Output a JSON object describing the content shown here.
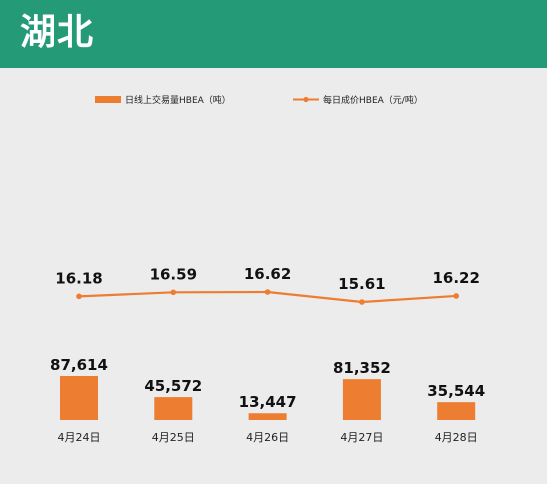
{
  "header": {
    "title": "湖北"
  },
  "colors": {
    "header_bg": "#259a76",
    "series": "#ed7d31",
    "background": "#ececec"
  },
  "chart_data": {
    "type": "bar",
    "categories": [
      "4月24日",
      "4月25日",
      "4月26日",
      "4月27日",
      "4月28日"
    ],
    "series": [
      {
        "name": "日线上交易量HBEA（吨）",
        "type": "bar",
        "values": [
          87614,
          45572,
          13447,
          81352,
          35544
        ],
        "labels": [
          "87,614",
          "45,572",
          "13,447",
          "81,352",
          "35,544"
        ]
      },
      {
        "name": "每日成价HBEA（元/吨）",
        "type": "line",
        "values": [
          16.18,
          16.59,
          16.62,
          15.61,
          16.22
        ],
        "labels": [
          "16.18",
          "16.59",
          "16.62",
          "15.61",
          "16.22"
        ]
      }
    ],
    "legend_position": "top",
    "grid": false
  }
}
